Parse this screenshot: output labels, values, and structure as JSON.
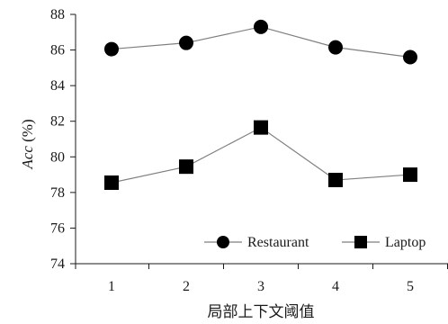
{
  "chart_data": {
    "type": "line",
    "x": [
      "1",
      "2",
      "3",
      "4",
      "5"
    ],
    "xlabel": "局部上下文阈值",
    "ylabel_italic": "Acc",
    "ylabel_unit": " (%)",
    "ylim": [
      74,
      88
    ],
    "yticks": [
      "74",
      "76",
      "78",
      "80",
      "82",
      "84",
      "86",
      "88"
    ],
    "grid": false,
    "legend_position": "bottom-right",
    "series": [
      {
        "name": "Restaurant",
        "marker": "circle",
        "values": [
          86.05,
          86.4,
          87.3,
          86.15,
          85.6
        ]
      },
      {
        "name": "Laptop",
        "marker": "square",
        "values": [
          78.55,
          79.45,
          81.65,
          78.7,
          79.0
        ]
      }
    ]
  },
  "colors": {
    "line": "#7f7f7f",
    "marker": "#000000",
    "axis": "#1a1a1a"
  }
}
